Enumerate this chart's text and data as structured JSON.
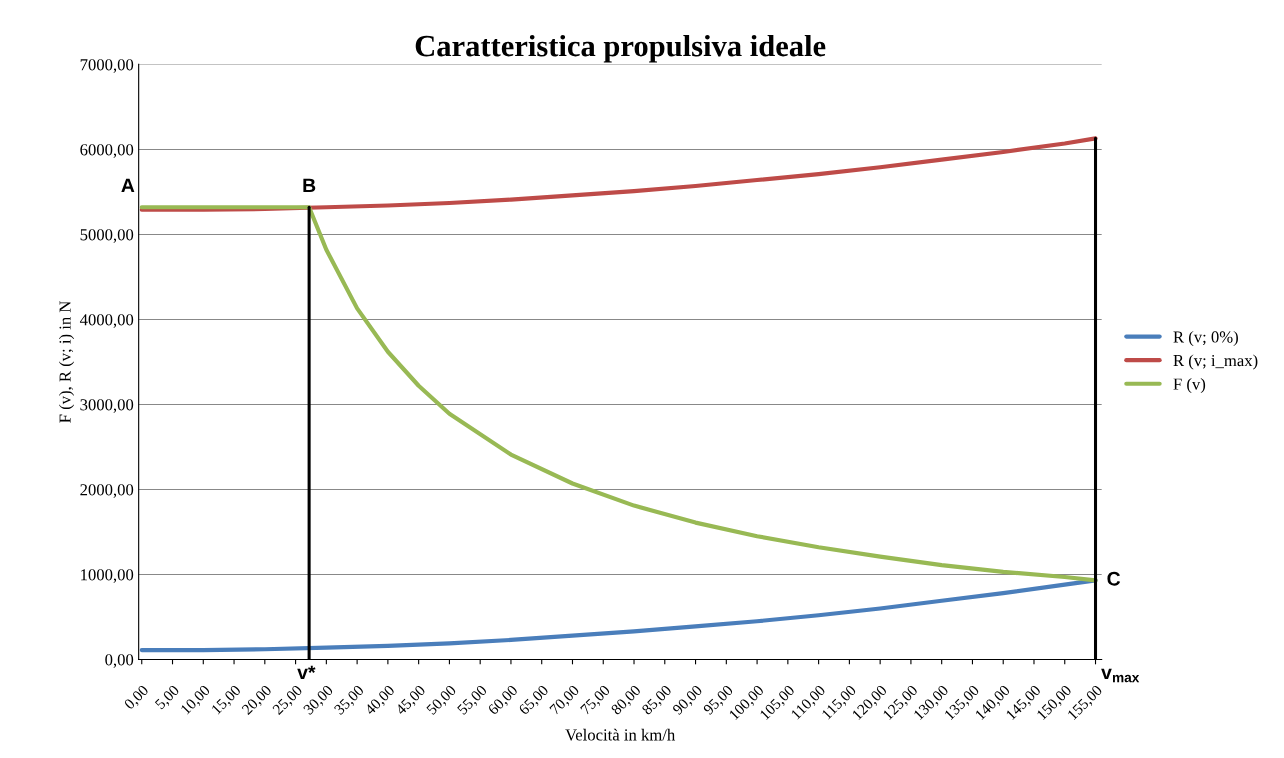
{
  "chart_data": {
    "type": "line",
    "title": "Caratteristica propulsiva ideale",
    "xlabel": "Velocità in km/h",
    "ylabel": "F (v), R (v; i) in N",
    "xlim": [
      -0.5,
      156
    ],
    "xticks": [
      {
        "value": 0,
        "label": "0,00"
      },
      {
        "value": 5,
        "label": "5,00"
      },
      {
        "value": 10,
        "label": "10,00"
      },
      {
        "value": 15,
        "label": "15,00"
      },
      {
        "value": 20,
        "label": "20,00"
      },
      {
        "value": 25,
        "label": "25,00"
      },
      {
        "value": 30,
        "label": "30,00"
      },
      {
        "value": 35,
        "label": "35,00"
      },
      {
        "value": 40,
        "label": "40,00"
      },
      {
        "value": 45,
        "label": "45,00"
      },
      {
        "value": 50,
        "label": "50,00"
      },
      {
        "value": 55,
        "label": "55,00"
      },
      {
        "value": 60,
        "label": "60,00"
      },
      {
        "value": 65,
        "label": "65,00"
      },
      {
        "value": 70,
        "label": "70,00"
      },
      {
        "value": 75,
        "label": "75,00"
      },
      {
        "value": 80,
        "label": "80,00"
      },
      {
        "value": 85,
        "label": "85,00"
      },
      {
        "value": 90,
        "label": "90,00"
      },
      {
        "value": 95,
        "label": "95,00"
      },
      {
        "value": 100,
        "label": "100,00"
      },
      {
        "value": 105,
        "label": "105,00"
      },
      {
        "value": 110,
        "label": "110,00"
      },
      {
        "value": 115,
        "label": "115,00"
      },
      {
        "value": 120,
        "label": "120,00"
      },
      {
        "value": 125,
        "label": "125,00"
      },
      {
        "value": 130,
        "label": "130,00"
      },
      {
        "value": 135,
        "label": "135,00"
      },
      {
        "value": 140,
        "label": "140,00"
      },
      {
        "value": 145,
        "label": "145,00"
      },
      {
        "value": 150,
        "label": "150,00"
      },
      {
        "value": 155,
        "label": "155,00"
      }
    ],
    "ylim": [
      0,
      7000
    ],
    "yticks": [
      {
        "value": 0,
        "label": "0,00"
      },
      {
        "value": 1000,
        "label": "1000,00"
      },
      {
        "value": 2000,
        "label": "2000,00"
      },
      {
        "value": 3000,
        "label": "3000,00"
      },
      {
        "value": 4000,
        "label": "4000,00"
      },
      {
        "value": 5000,
        "label": "5000,00"
      },
      {
        "value": 6000,
        "label": "6000,00"
      },
      {
        "value": 7000,
        "label": "7000,00"
      }
    ],
    "grid": "y",
    "legend": "right",
    "series": [
      {
        "name": "R (v; 0%)",
        "color": "#4a7ebb",
        "x": [
          0,
          10,
          20,
          30,
          40,
          50,
          60,
          70,
          80,
          90,
          100,
          110,
          120,
          130,
          140,
          150,
          155
        ],
        "values": [
          110,
          110,
          120,
          140,
          160,
          190,
          230,
          280,
          330,
          390,
          450,
          520,
          600,
          690,
          780,
          880,
          930
        ]
      },
      {
        "name": "R (v; i_max)",
        "color": "#be4b48",
        "x": [
          0,
          10,
          20,
          30,
          40,
          50,
          60,
          70,
          80,
          90,
          100,
          110,
          120,
          130,
          140,
          150,
          155
        ],
        "values": [
          5290,
          5290,
          5300,
          5320,
          5340,
          5370,
          5410,
          5460,
          5510,
          5570,
          5640,
          5710,
          5790,
          5880,
          5970,
          6070,
          6130
        ]
      },
      {
        "name": "F (v)",
        "color": "#98b954",
        "x": [
          0,
          10,
          20,
          27.2,
          30,
          35,
          40,
          45,
          50,
          60,
          70,
          80,
          90,
          100,
          110,
          120,
          130,
          140,
          150,
          155
        ],
        "values": [
          5320,
          5320,
          5320,
          5320,
          4820,
          4130,
          3620,
          3220,
          2890,
          2410,
          2070,
          1810,
          1610,
          1450,
          1320,
          1210,
          1110,
          1030,
          970,
          930
        ]
      },
      {
        "color": "#000000",
        "x": [
          27.2,
          27.2
        ],
        "values": [
          0,
          5320
        ]
      },
      {
        "color": "#000000",
        "x": [
          155,
          155
        ],
        "values": [
          0,
          6130
        ]
      }
    ],
    "annotations": [
      {
        "text": "A",
        "x": 0,
        "y": 5320
      },
      {
        "text": "B",
        "x": 27.2,
        "y": 5320
      },
      {
        "text": "C",
        "x": 155,
        "y": 930
      },
      {
        "text": "v*",
        "x": 27.2,
        "y": 0
      },
      {
        "text": "v$_{max}$",
        "x": 155,
        "y": 0
      }
    ]
  }
}
